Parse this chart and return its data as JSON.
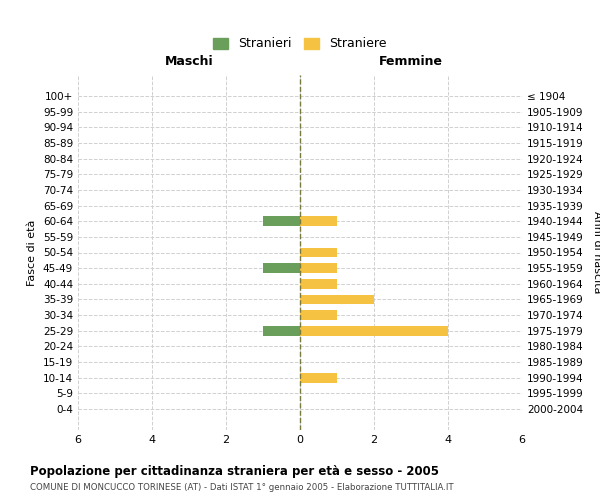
{
  "age_groups": [
    "100+",
    "95-99",
    "90-94",
    "85-89",
    "80-84",
    "75-79",
    "70-74",
    "65-69",
    "60-64",
    "55-59",
    "50-54",
    "45-49",
    "40-44",
    "35-39",
    "30-34",
    "25-29",
    "20-24",
    "15-19",
    "10-14",
    "5-9",
    "0-4"
  ],
  "birth_years": [
    "≤ 1904",
    "1905-1909",
    "1910-1914",
    "1915-1919",
    "1920-1924",
    "1925-1929",
    "1930-1934",
    "1935-1939",
    "1940-1944",
    "1945-1949",
    "1950-1954",
    "1955-1959",
    "1960-1964",
    "1965-1969",
    "1970-1974",
    "1975-1979",
    "1980-1984",
    "1985-1989",
    "1990-1994",
    "1995-1999",
    "2000-2004"
  ],
  "males": [
    0,
    0,
    0,
    0,
    0,
    0,
    0,
    0,
    1,
    0,
    0,
    1,
    0,
    0,
    0,
    1,
    0,
    0,
    0,
    0,
    0
  ],
  "females": [
    0,
    0,
    0,
    0,
    0,
    0,
    0,
    0,
    1,
    0,
    1,
    1,
    1,
    2,
    1,
    4,
    0,
    0,
    1,
    0,
    0
  ],
  "male_color": "#6a9f5b",
  "female_color": "#f5c242",
  "center_line_color": "#7a7a40",
  "grid_color": "#d0d0d0",
  "background_color": "#ffffff",
  "title": "Popolazione per cittadinanza straniera per età e sesso - 2005",
  "subtitle": "COMUNE DI MONCUCCO TORINESE (AT) - Dati ISTAT 1° gennaio 2005 - Elaborazione TUTTITALIA.IT",
  "ylabel_left": "Fasce di età",
  "ylabel_right": "Anni di nascita",
  "header_left": "Maschi",
  "header_right": "Femmine",
  "legend_male": "Stranieri",
  "legend_female": "Straniere",
  "xlim": 6
}
